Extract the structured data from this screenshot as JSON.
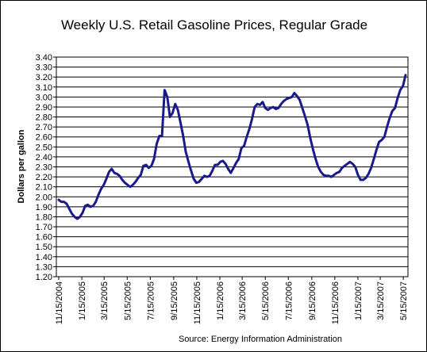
{
  "chart_data": {
    "type": "line",
    "title": "Weekly U.S. Retail Gasoline Prices, Regular Grade",
    "ylabel": "Dollars per gallon",
    "xlabel": "",
    "source": "Source:  Energy Information Administration",
    "ylim": [
      1.2,
      3.4
    ],
    "y_ticks": [
      "1.20",
      "1.30",
      "1.40",
      "1.50",
      "1.60",
      "1.70",
      "1.80",
      "1.90",
      "2.00",
      "2.10",
      "2.20",
      "2.30",
      "2.40",
      "2.50",
      "2.60",
      "2.70",
      "2.80",
      "2.90",
      "3.00",
      "3.10",
      "3.20",
      "3.30",
      "3.40"
    ],
    "x_ticks": [
      "11/15/2004",
      "1/15/2005",
      "3/15/2005",
      "5/15/2005",
      "7/15/2005",
      "9/15/2005",
      "11/15/2005",
      "1/15/2006",
      "3/15/2006",
      "5/15/2006",
      "7/15/2006",
      "9/15/2006",
      "11/15/2006",
      "1/15/2007",
      "3/15/2007",
      "5/15/2007"
    ],
    "grid": true,
    "legend": "none",
    "line_color": "#1a1a8c",
    "series": [
      {
        "x": [
          "2004-11-15",
          "2004-11-22",
          "2004-11-29",
          "2004-12-06",
          "2004-12-13",
          "2004-12-20",
          "2004-12-27",
          "2005-01-03",
          "2005-01-10",
          "2005-01-17",
          "2005-01-24",
          "2005-01-31",
          "2005-02-07",
          "2005-02-14",
          "2005-02-21",
          "2005-02-28",
          "2005-03-07",
          "2005-03-14",
          "2005-03-21",
          "2005-03-28",
          "2005-04-04",
          "2005-04-11",
          "2005-04-18",
          "2005-04-25",
          "2005-05-02",
          "2005-05-09",
          "2005-05-16",
          "2005-05-23",
          "2005-05-30",
          "2005-06-06",
          "2005-06-13",
          "2005-06-20",
          "2005-06-27",
          "2005-07-04",
          "2005-07-11",
          "2005-07-18",
          "2005-07-25",
          "2005-08-01",
          "2005-08-08",
          "2005-08-15",
          "2005-08-22",
          "2005-08-29",
          "2005-09-05",
          "2005-09-12",
          "2005-09-19",
          "2005-09-26",
          "2005-10-03",
          "2005-10-10",
          "2005-10-17",
          "2005-10-24",
          "2005-10-31",
          "2005-11-07",
          "2005-11-14",
          "2005-11-21",
          "2005-11-28",
          "2005-12-05",
          "2005-12-12",
          "2005-12-19",
          "2005-12-26",
          "2006-01-02",
          "2006-01-09",
          "2006-01-16",
          "2006-01-23",
          "2006-01-30",
          "2006-02-06",
          "2006-02-13",
          "2006-02-20",
          "2006-02-27",
          "2006-03-06",
          "2006-03-13",
          "2006-03-20",
          "2006-03-27",
          "2006-04-03",
          "2006-04-10",
          "2006-04-17",
          "2006-04-24",
          "2006-05-01",
          "2006-05-08",
          "2006-05-15",
          "2006-05-22",
          "2006-05-29",
          "2006-06-05",
          "2006-06-12",
          "2006-06-19",
          "2006-06-26",
          "2006-07-03",
          "2006-07-10",
          "2006-07-17",
          "2006-07-24",
          "2006-07-31",
          "2006-08-07",
          "2006-08-14",
          "2006-08-21",
          "2006-08-28",
          "2006-09-04",
          "2006-09-11",
          "2006-09-18",
          "2006-09-25",
          "2006-10-02",
          "2006-10-09",
          "2006-10-16",
          "2006-10-23",
          "2006-10-30",
          "2006-11-06",
          "2006-11-13",
          "2006-11-20",
          "2006-11-27",
          "2006-12-04",
          "2006-12-11",
          "2006-12-18",
          "2006-12-25",
          "2007-01-01",
          "2007-01-08",
          "2007-01-15",
          "2007-01-22",
          "2007-01-29",
          "2007-02-05",
          "2007-02-12",
          "2007-02-19",
          "2007-02-26",
          "2007-03-05",
          "2007-03-12",
          "2007-03-19",
          "2007-03-26",
          "2007-04-02",
          "2007-04-09",
          "2007-04-16",
          "2007-04-23",
          "2007-04-30",
          "2007-05-07",
          "2007-05-14",
          "2007-05-21"
        ],
        "y": [
          1.97,
          1.95,
          1.95,
          1.93,
          1.88,
          1.83,
          1.8,
          1.78,
          1.8,
          1.84,
          1.91,
          1.92,
          1.9,
          1.91,
          1.95,
          2.02,
          2.08,
          2.12,
          2.18,
          2.25,
          2.28,
          2.24,
          2.23,
          2.21,
          2.17,
          2.14,
          2.12,
          2.1,
          2.12,
          2.15,
          2.19,
          2.22,
          2.31,
          2.32,
          2.29,
          2.31,
          2.38,
          2.53,
          2.61,
          2.61,
          3.07,
          3.0,
          2.8,
          2.84,
          2.93,
          2.87,
          2.74,
          2.61,
          2.45,
          2.35,
          2.26,
          2.18,
          2.14,
          2.15,
          2.18,
          2.21,
          2.2,
          2.21,
          2.26,
          2.32,
          2.32,
          2.35,
          2.36,
          2.33,
          2.28,
          2.24,
          2.29,
          2.34,
          2.38,
          2.49,
          2.51,
          2.6,
          2.68,
          2.78,
          2.9,
          2.93,
          2.92,
          2.95,
          2.89,
          2.87,
          2.89,
          2.9,
          2.88,
          2.89,
          2.93,
          2.96,
          2.98,
          2.99,
          3.0,
          3.04,
          3.01,
          2.97,
          2.89,
          2.81,
          2.72,
          2.59,
          2.48,
          2.38,
          2.3,
          2.25,
          2.22,
          2.21,
          2.21,
          2.2,
          2.22,
          2.24,
          2.25,
          2.29,
          2.31,
          2.33,
          2.35,
          2.33,
          2.3,
          2.22,
          2.17,
          2.17,
          2.19,
          2.23,
          2.29,
          2.38,
          2.47,
          2.55,
          2.57,
          2.6,
          2.7,
          2.79,
          2.86,
          2.89,
          2.99,
          3.07,
          3.11,
          3.22
        ]
      }
    ]
  }
}
